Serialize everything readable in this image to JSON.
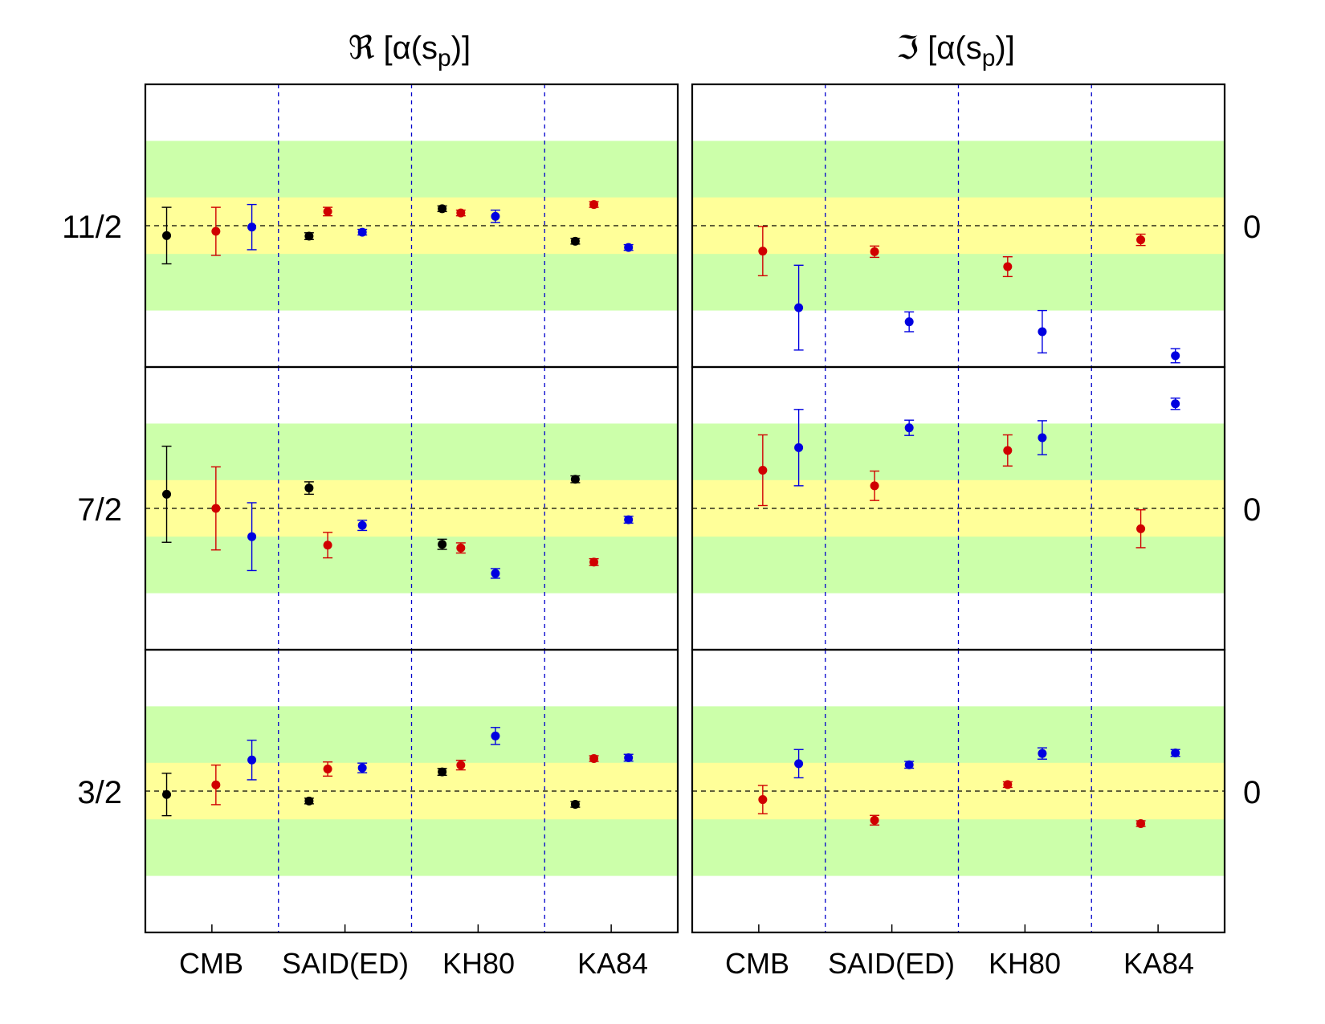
{
  "columns": [
    {
      "symbol": "ℜ",
      "bracket_open": " [α(s",
      "subscript": "p",
      "bracket_close": ")]"
    },
    {
      "symbol": "ℑ",
      "bracket_open": " [α(s",
      "subscript": "p",
      "bracket_close": ")]"
    }
  ],
  "row_labels": [
    "11/2",
    "7/2",
    "3/2"
  ],
  "right_labels": [
    "0",
    "0",
    "0"
  ],
  "categories": [
    "CMB",
    "SAID(ED)",
    "KH80",
    "KA84"
  ],
  "colors": {
    "black": "#000000",
    "red": "#d00000",
    "blue": "#0000e0",
    "green_band": "#ccffaa",
    "yellow_band": "#ffff99",
    "separator": "#0000cc"
  },
  "chart_data": {
    "type": "scatter",
    "note_units": "values relative to panel reference (dashed line = 0); yellow band = ±1, green band = ±3",
    "ylim": [
      -5,
      5
    ],
    "bands": {
      "yellow": [
        -1,
        1
      ],
      "green": [
        -3,
        3
      ]
    },
    "panels": [
      {
        "row": "11/2",
        "column": "Re",
        "points": [
          {
            "category": "CMB",
            "offset": -0.34,
            "color": "black",
            "y": -0.35,
            "err": 1.0
          },
          {
            "category": "CMB",
            "offset": 0.03,
            "color": "red",
            "y": -0.2,
            "err": 0.85
          },
          {
            "category": "CMB",
            "offset": 0.3,
            "color": "blue",
            "y": -0.05,
            "err": 0.8
          },
          {
            "category": "SAID(ED)",
            "offset": -0.27,
            "color": "black",
            "y": -0.37,
            "err": 0.12
          },
          {
            "category": "SAID(ED)",
            "offset": -0.13,
            "color": "red",
            "y": 0.5,
            "err": 0.15
          },
          {
            "category": "SAID(ED)",
            "offset": 0.13,
            "color": "blue",
            "y": -0.23,
            "err": 0.1
          },
          {
            "category": "KH80",
            "offset": -0.27,
            "color": "black",
            "y": 0.6,
            "err": 0.1
          },
          {
            "category": "KH80",
            "offset": -0.13,
            "color": "red",
            "y": 0.45,
            "err": 0.1
          },
          {
            "category": "KH80",
            "offset": 0.13,
            "color": "blue",
            "y": 0.33,
            "err": 0.22
          },
          {
            "category": "KA84",
            "offset": -0.27,
            "color": "black",
            "y": -0.55,
            "err": 0.1
          },
          {
            "category": "KA84",
            "offset": -0.13,
            "color": "red",
            "y": 0.75,
            "err": 0.1
          },
          {
            "category": "KA84",
            "offset": 0.13,
            "color": "blue",
            "y": -0.77,
            "err": 0.1
          }
        ]
      },
      {
        "row": "11/2",
        "column": "Im",
        "points": [
          {
            "category": "CMB",
            "offset": 0.03,
            "color": "red",
            "y": -0.9,
            "err": 0.87
          },
          {
            "category": "CMB",
            "offset": 0.3,
            "color": "blue",
            "y": -2.9,
            "err": 1.5
          },
          {
            "category": "SAID(ED)",
            "offset": -0.13,
            "color": "red",
            "y": -0.92,
            "err": 0.2
          },
          {
            "category": "SAID(ED)",
            "offset": 0.13,
            "color": "blue",
            "y": -3.4,
            "err": 0.35
          },
          {
            "category": "KH80",
            "offset": -0.13,
            "color": "red",
            "y": -1.45,
            "err": 0.35
          },
          {
            "category": "KH80",
            "offset": 0.13,
            "color": "blue",
            "y": -3.75,
            "err": 0.75
          },
          {
            "category": "KA84",
            "offset": -0.13,
            "color": "red",
            "y": -0.5,
            "err": 0.2
          },
          {
            "category": "KA84",
            "offset": 0.13,
            "color": "blue",
            "y": -4.6,
            "err": 0.25
          }
        ]
      },
      {
        "row": "7/2",
        "column": "Re",
        "points": [
          {
            "category": "CMB",
            "offset": -0.34,
            "color": "black",
            "y": 0.5,
            "err": 1.7
          },
          {
            "category": "CMB",
            "offset": 0.03,
            "color": "red",
            "y": 0.0,
            "err": 1.47
          },
          {
            "category": "CMB",
            "offset": 0.3,
            "color": "blue",
            "y": -1.0,
            "err": 1.2
          },
          {
            "category": "SAID(ED)",
            "offset": -0.27,
            "color": "black",
            "y": 0.72,
            "err": 0.22
          },
          {
            "category": "SAID(ED)",
            "offset": -0.13,
            "color": "red",
            "y": -1.3,
            "err": 0.45
          },
          {
            "category": "SAID(ED)",
            "offset": 0.13,
            "color": "blue",
            "y": -0.6,
            "err": 0.18
          },
          {
            "category": "KH80",
            "offset": -0.27,
            "color": "black",
            "y": -1.27,
            "err": 0.18
          },
          {
            "category": "KH80",
            "offset": -0.13,
            "color": "red",
            "y": -1.4,
            "err": 0.18
          },
          {
            "category": "KH80",
            "offset": 0.13,
            "color": "blue",
            "y": -2.3,
            "err": 0.17
          },
          {
            "category": "KA84",
            "offset": -0.27,
            "color": "black",
            "y": 1.03,
            "err": 0.12
          },
          {
            "category": "KA84",
            "offset": -0.13,
            "color": "red",
            "y": -1.9,
            "err": 0.12
          },
          {
            "category": "KA84",
            "offset": 0.13,
            "color": "blue",
            "y": -0.4,
            "err": 0.12
          }
        ]
      },
      {
        "row": "7/2",
        "column": "Im",
        "points": [
          {
            "category": "CMB",
            "offset": 0.03,
            "color": "red",
            "y": 1.35,
            "err": 1.25
          },
          {
            "category": "CMB",
            "offset": 0.3,
            "color": "blue",
            "y": 2.15,
            "err": 1.35
          },
          {
            "category": "SAID(ED)",
            "offset": -0.13,
            "color": "red",
            "y": 0.8,
            "err": 0.52
          },
          {
            "category": "SAID(ED)",
            "offset": 0.13,
            "color": "blue",
            "y": 2.85,
            "err": 0.27
          },
          {
            "category": "KH80",
            "offset": -0.13,
            "color": "red",
            "y": 2.05,
            "err": 0.55
          },
          {
            "category": "KH80",
            "offset": 0.13,
            "color": "blue",
            "y": 2.5,
            "err": 0.6
          },
          {
            "category": "KA84",
            "offset": -0.13,
            "color": "red",
            "y": -0.72,
            "err": 0.67
          },
          {
            "category": "KA84",
            "offset": 0.13,
            "color": "blue",
            "y": 3.7,
            "err": 0.2
          }
        ]
      },
      {
        "row": "3/2",
        "column": "Re",
        "points": [
          {
            "category": "CMB",
            "offset": -0.34,
            "color": "black",
            "y": -0.12,
            "err": 0.75
          },
          {
            "category": "CMB",
            "offset": 0.03,
            "color": "red",
            "y": 0.22,
            "err": 0.7
          },
          {
            "category": "CMB",
            "offset": 0.3,
            "color": "blue",
            "y": 1.1,
            "err": 0.7
          },
          {
            "category": "SAID(ED)",
            "offset": -0.27,
            "color": "black",
            "y": -0.35,
            "err": 0.1
          },
          {
            "category": "SAID(ED)",
            "offset": -0.13,
            "color": "red",
            "y": 0.78,
            "err": 0.25
          },
          {
            "category": "SAID(ED)",
            "offset": 0.13,
            "color": "blue",
            "y": 0.82,
            "err": 0.17
          },
          {
            "category": "KH80",
            "offset": -0.27,
            "color": "black",
            "y": 0.68,
            "err": 0.12
          },
          {
            "category": "KH80",
            "offset": -0.13,
            "color": "red",
            "y": 0.92,
            "err": 0.17
          },
          {
            "category": "KH80",
            "offset": 0.13,
            "color": "blue",
            "y": 1.95,
            "err": 0.3
          },
          {
            "category": "KA84",
            "offset": -0.27,
            "color": "black",
            "y": -0.47,
            "err": 0.1
          },
          {
            "category": "KA84",
            "offset": -0.13,
            "color": "red",
            "y": 1.15,
            "err": 0.1
          },
          {
            "category": "KA84",
            "offset": 0.13,
            "color": "blue",
            "y": 1.18,
            "err": 0.12
          }
        ]
      },
      {
        "row": "3/2",
        "column": "Im",
        "points": [
          {
            "category": "CMB",
            "offset": 0.03,
            "color": "red",
            "y": -0.3,
            "err": 0.5
          },
          {
            "category": "CMB",
            "offset": 0.3,
            "color": "blue",
            "y": 0.97,
            "err": 0.5
          },
          {
            "category": "SAID(ED)",
            "offset": -0.13,
            "color": "red",
            "y": -1.03,
            "err": 0.17
          },
          {
            "category": "SAID(ED)",
            "offset": 0.13,
            "color": "blue",
            "y": 0.93,
            "err": 0.12
          },
          {
            "category": "KH80",
            "offset": -0.13,
            "color": "red",
            "y": 0.23,
            "err": 0.1
          },
          {
            "category": "KH80",
            "offset": 0.13,
            "color": "blue",
            "y": 1.33,
            "err": 0.2
          },
          {
            "category": "KA84",
            "offset": -0.13,
            "color": "red",
            "y": -1.15,
            "err": 0.1
          },
          {
            "category": "KA84",
            "offset": 0.13,
            "color": "blue",
            "y": 1.35,
            "err": 0.12
          }
        ]
      }
    ]
  }
}
